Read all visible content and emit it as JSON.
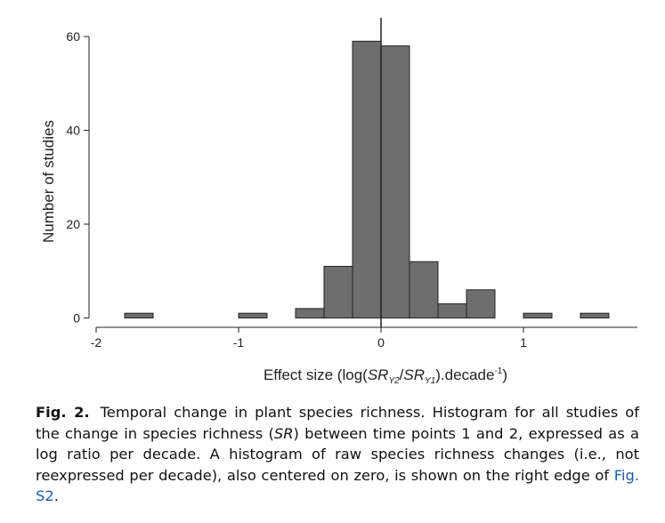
{
  "chart_data": {
    "type": "bar",
    "title": "",
    "xlabel": "Effect size (log(SRY2/SRY1).decade-1)",
    "xlabel_parts": {
      "prefix": "Effect size (log(",
      "sr1": "SR",
      "sub1": "Y2",
      "slash": "/",
      "sr2": "SR",
      "sub2": "Y1",
      "mid": ").decade",
      "sup": "-1",
      "suffix": ")"
    },
    "ylabel": "Number of studies",
    "xlim": [
      -2.05,
      1.8
    ],
    "ylim": [
      -2,
      64
    ],
    "xticks": [
      -2,
      -1,
      0,
      1
    ],
    "xtick_labels": [
      "-2",
      "-1",
      "0",
      "1"
    ],
    "yticks": [
      0,
      20,
      40,
      60
    ],
    "ytick_labels": [
      "0",
      "20",
      "40",
      "60"
    ],
    "bin_width": 0.2,
    "bins": [
      {
        "x0": -1.8,
        "x1": -1.6,
        "count": 1
      },
      {
        "x0": -1.0,
        "x1": -0.8,
        "count": 1
      },
      {
        "x0": -0.6,
        "x1": -0.4,
        "count": 2
      },
      {
        "x0": -0.4,
        "x1": -0.2,
        "count": 11
      },
      {
        "x0": -0.2,
        "x1": 0.0,
        "count": 59
      },
      {
        "x0": 0.0,
        "x1": 0.2,
        "count": 58
      },
      {
        "x0": 0.2,
        "x1": 0.4,
        "count": 12
      },
      {
        "x0": 0.4,
        "x1": 0.6,
        "count": 3
      },
      {
        "x0": 0.6,
        "x1": 0.8,
        "count": 6
      },
      {
        "x0": 1.0,
        "x1": 1.2,
        "count": 1
      },
      {
        "x0": 1.4,
        "x1": 1.6,
        "count": 1
      }
    ],
    "reference_line_x": 0,
    "grid": false,
    "legend": "none",
    "colors": {
      "bar_fill": "#6e6e6e",
      "bar_stroke": "#222222",
      "axis": "#222222"
    }
  },
  "caption": {
    "label": "Fig. 2.",
    "text_before_link": "Temporal change in plant species richness. Histogram for all studies of the change in species richness (",
    "sr_italic": "SR",
    "text_middle": ") between time points 1 and 2, expressed as a log ratio per decade. A histogram of raw species richness changes (i.e., not reexpressed per decade), also centered on zero, is shown on the right edge of ",
    "link_text": "Fig. S2",
    "text_after_link": "."
  }
}
